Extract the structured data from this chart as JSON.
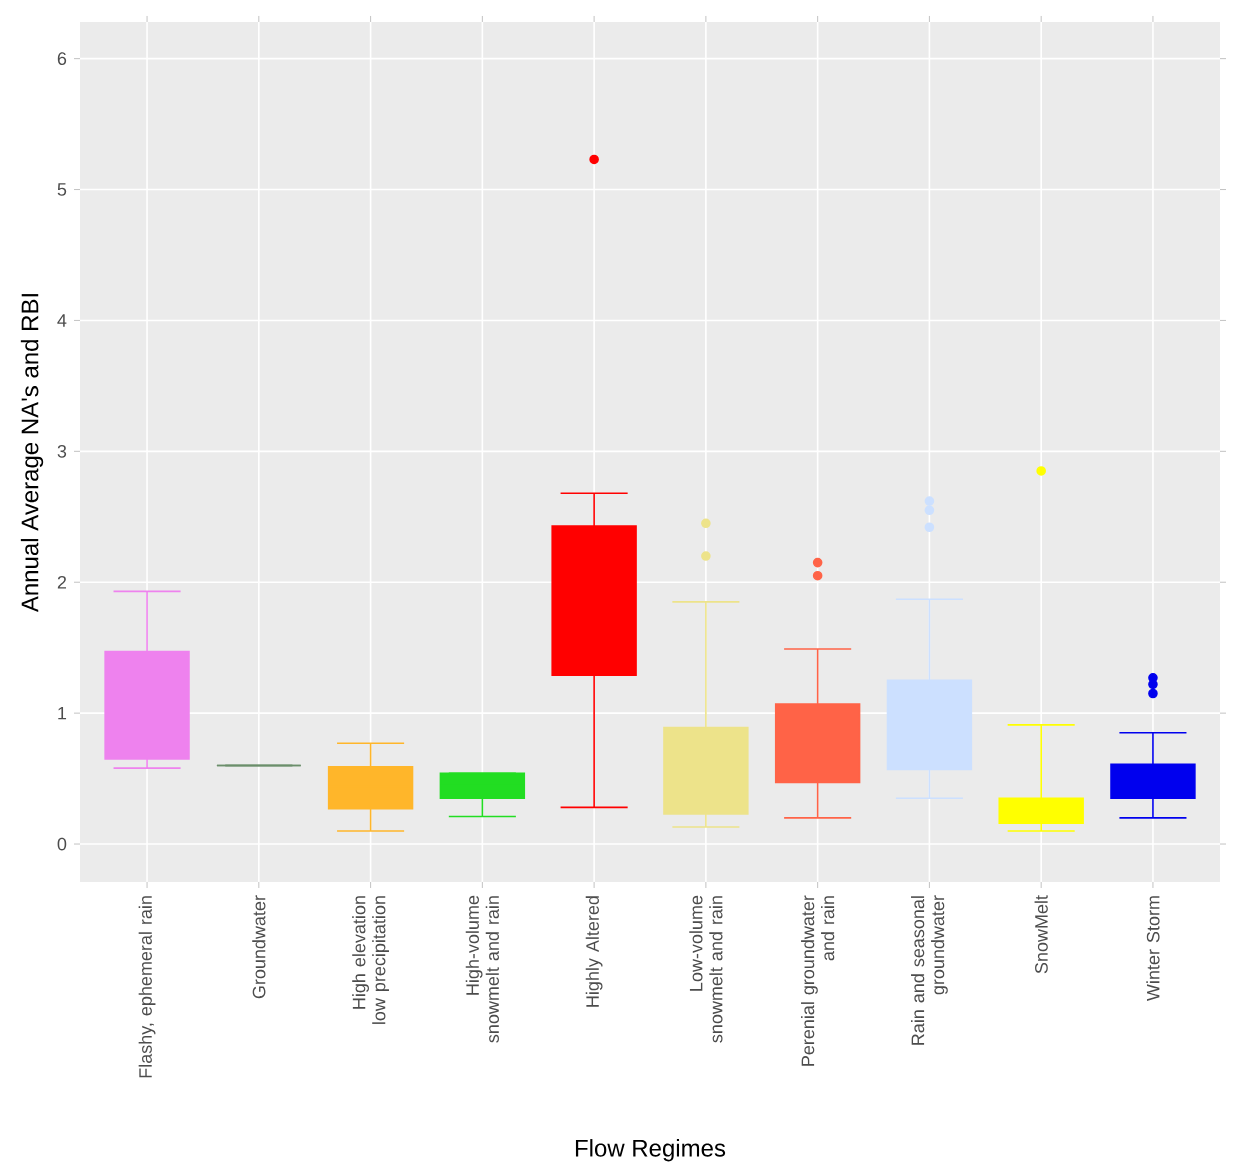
{
  "chart_data": {
    "type": "box",
    "xlabel": "Flow Regimes",
    "ylabel": "Annual Average NA's and RBI",
    "categories": [
      "Flashy, ephemeral rain",
      "Groundwater",
      "High elevation low precipitation",
      "High-volume snowmelt and rain",
      "Highly Altered",
      "Low-volume snowmelt and rain",
      "Perenial groundwater and rain",
      "Rain and seasonal groundwater",
      "SnowMelt",
      "Winter Storm"
    ],
    "colors": [
      "#ee82ee",
      "#6b8e6b",
      "#ffb62a",
      "#22dd22",
      "#ff0000",
      "#ede38a",
      "#ff6347",
      "#cce0ff",
      "#ffff00",
      "#0000ee"
    ],
    "boxes": [
      {
        "low": 0.58,
        "q1": 0.65,
        "median": 1.01,
        "q3": 1.47,
        "high": 1.93
      },
      {
        "low": 0.6,
        "q1": 0.6,
        "median": 0.6,
        "q3": 0.6,
        "high": 0.6
      },
      {
        "low": 0.1,
        "q1": 0.27,
        "median": 0.44,
        "q3": 0.59,
        "high": 0.77
      },
      {
        "low": 0.21,
        "q1": 0.35,
        "median": 0.45,
        "q3": 0.54,
        "high": 0.54
      },
      {
        "low": 0.28,
        "q1": 1.29,
        "median": 2.05,
        "q3": 2.43,
        "high": 2.68,
        "outliers": [
          5.23
        ]
      },
      {
        "low": 0.13,
        "q1": 0.23,
        "median": 0.41,
        "q3": 0.89,
        "high": 1.85,
        "outliers": [
          2.2,
          2.45
        ]
      },
      {
        "low": 0.2,
        "q1": 0.47,
        "median": 0.74,
        "q3": 1.07,
        "high": 1.49,
        "outliers": [
          2.05,
          2.15
        ]
      },
      {
        "low": 0.35,
        "q1": 0.57,
        "median": 0.76,
        "q3": 1.25,
        "high": 1.87,
        "outliers": [
          2.42,
          2.55,
          2.62
        ]
      },
      {
        "low": 0.1,
        "q1": 0.16,
        "median": 0.26,
        "q3": 0.35,
        "high": 0.91,
        "outliers": [
          2.85
        ]
      },
      {
        "low": 0.2,
        "q1": 0.35,
        "median": 0.43,
        "q3": 0.61,
        "high": 0.85,
        "outliers": [
          1.15,
          1.22,
          1.27
        ]
      }
    ],
    "ylim": [
      -0.29,
      6.28
    ],
    "yticks": [
      0,
      1,
      2,
      3,
      4,
      5,
      6
    ],
    "grid": true
  }
}
